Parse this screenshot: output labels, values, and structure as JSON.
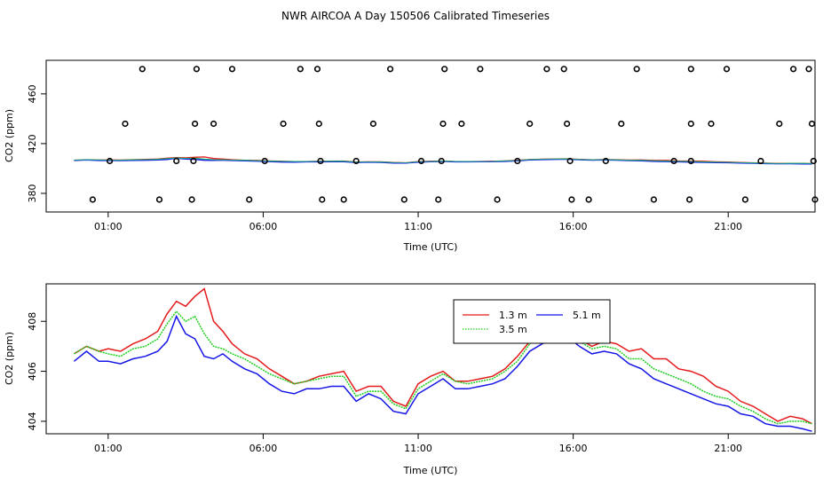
{
  "title": "NWR AIRCOA A  Day 150506  Calibrated Timeseries",
  "colors": {
    "1.3 m": "#e41a1c",
    "3.5 m": "#1fce1f",
    "5.1 m": "#1515e6",
    "teal": "#1aa0a0"
  },
  "chart_data": [
    {
      "type": "scatter",
      "panel": "top",
      "xlabel": "Time (UTC)",
      "ylabel": "CO2 (ppm)",
      "xlim": [
        -1,
        23.8
      ],
      "ylim": [
        365,
        487
      ],
      "xticks": [
        {
          "value": 1,
          "label": "01:00"
        },
        {
          "value": 6,
          "label": "06:00"
        },
        {
          "value": 11,
          "label": "11:00"
        },
        {
          "value": 16,
          "label": "16:00"
        },
        {
          "value": 21,
          "label": "21:00"
        }
      ],
      "yticks": [
        {
          "value": 380,
          "label": "380"
        },
        {
          "value": 420,
          "label": "420"
        },
        {
          "value": 460,
          "label": "460"
        }
      ],
      "outliers": [
        {
          "x": 2.1,
          "y": 480
        },
        {
          "x": 3.85,
          "y": 480
        },
        {
          "x": 5.0,
          "y": 480
        },
        {
          "x": 7.2,
          "y": 480
        },
        {
          "x": 7.75,
          "y": 480
        },
        {
          "x": 10.1,
          "y": 480
        },
        {
          "x": 11.85,
          "y": 480
        },
        {
          "x": 13.0,
          "y": 480
        },
        {
          "x": 15.15,
          "y": 480
        },
        {
          "x": 15.7,
          "y": 480
        },
        {
          "x": 18.05,
          "y": 480
        },
        {
          "x": 19.8,
          "y": 480
        },
        {
          "x": 20.95,
          "y": 480
        },
        {
          "x": 23.1,
          "y": 480
        },
        {
          "x": 23.6,
          "y": 480
        },
        {
          "x": 1.55,
          "y": 436
        },
        {
          "x": 3.8,
          "y": 436
        },
        {
          "x": 4.4,
          "y": 436
        },
        {
          "x": 6.65,
          "y": 436
        },
        {
          "x": 7.8,
          "y": 436
        },
        {
          "x": 9.55,
          "y": 436
        },
        {
          "x": 11.8,
          "y": 436
        },
        {
          "x": 12.4,
          "y": 436
        },
        {
          "x": 14.6,
          "y": 436
        },
        {
          "x": 15.8,
          "y": 436
        },
        {
          "x": 17.55,
          "y": 436
        },
        {
          "x": 19.8,
          "y": 436
        },
        {
          "x": 20.45,
          "y": 436
        },
        {
          "x": 22.65,
          "y": 436
        },
        {
          "x": 23.7,
          "y": 436
        },
        {
          "x": 1.05,
          "y": 406
        },
        {
          "x": 3.2,
          "y": 406
        },
        {
          "x": 3.75,
          "y": 406
        },
        {
          "x": 6.05,
          "y": 406
        },
        {
          "x": 7.85,
          "y": 406
        },
        {
          "x": 9.0,
          "y": 406
        },
        {
          "x": 11.1,
          "y": 406
        },
        {
          "x": 11.75,
          "y": 406
        },
        {
          "x": 14.2,
          "y": 406
        },
        {
          "x": 15.9,
          "y": 406
        },
        {
          "x": 17.05,
          "y": 406
        },
        {
          "x": 19.25,
          "y": 406
        },
        {
          "x": 19.8,
          "y": 406
        },
        {
          "x": 22.05,
          "y": 406
        },
        {
          "x": 23.75,
          "y": 406
        },
        {
          "x": 0.5,
          "y": 375
        },
        {
          "x": 2.65,
          "y": 375
        },
        {
          "x": 3.7,
          "y": 375
        },
        {
          "x": 5.55,
          "y": 375
        },
        {
          "x": 7.9,
          "y": 375
        },
        {
          "x": 8.6,
          "y": 375
        },
        {
          "x": 10.55,
          "y": 375
        },
        {
          "x": 11.65,
          "y": 375
        },
        {
          "x": 13.55,
          "y": 375
        },
        {
          "x": 15.95,
          "y": 375
        },
        {
          "x": 16.5,
          "y": 375
        },
        {
          "x": 18.6,
          "y": 375
        },
        {
          "x": 19.75,
          "y": 375
        },
        {
          "x": 21.55,
          "y": 375
        },
        {
          "x": 23.8,
          "y": 375
        }
      ]
    },
    {
      "type": "line",
      "panel": "bottom",
      "xlabel": "Time (UTC)",
      "ylabel": "CO2 (ppm)",
      "xlim": [
        -1,
        23.8
      ],
      "ylim": [
        403.5,
        409.5
      ],
      "xticks": [
        {
          "value": 1,
          "label": "01:00"
        },
        {
          "value": 6,
          "label": "06:00"
        },
        {
          "value": 11,
          "label": "11:00"
        },
        {
          "value": 16,
          "label": "16:00"
        },
        {
          "value": 21,
          "label": "21:00"
        }
      ],
      "yticks": [
        {
          "value": 404,
          "label": "404"
        },
        {
          "value": 406,
          "label": "406"
        },
        {
          "value": 408,
          "label": "408"
        }
      ],
      "legend_position": "top-center",
      "legend_entries": [
        "1.3 m",
        "5.1 m",
        "3.5 m"
      ],
      "x": [
        -0.1,
        0.3,
        0.7,
        1.0,
        1.4,
        1.8,
        2.2,
        2.6,
        2.9,
        3.2,
        3.5,
        3.8,
        4.1,
        4.4,
        4.7,
        5.0,
        5.4,
        5.8,
        6.2,
        6.6,
        7.0,
        7.4,
        7.8,
        8.2,
        8.6,
        9.0,
        9.4,
        9.8,
        10.2,
        10.6,
        11.0,
        11.4,
        11.8,
        12.2,
        12.6,
        13.0,
        13.4,
        13.8,
        14.2,
        14.6,
        15.0,
        15.4,
        15.8,
        16.2,
        16.6,
        17.0,
        17.4,
        17.8,
        18.2,
        18.6,
        19.0,
        19.4,
        19.8,
        20.2,
        20.6,
        21.0,
        21.4,
        21.8,
        22.2,
        22.6,
        23.0,
        23.4,
        23.7
      ],
      "series": [
        {
          "name": "1.3 m",
          "color": "#e41a1c",
          "values": [
            406.7,
            407.0,
            406.8,
            406.9,
            406.8,
            407.1,
            407.3,
            407.6,
            408.3,
            408.8,
            408.6,
            409.0,
            409.3,
            408.0,
            407.6,
            407.1,
            406.7,
            406.5,
            406.1,
            405.8,
            405.5,
            405.6,
            405.8,
            405.9,
            406.0,
            405.2,
            405.4,
            405.4,
            404.8,
            404.6,
            405.5,
            405.8,
            406.0,
            405.6,
            405.6,
            405.7,
            405.8,
            406.1,
            406.6,
            407.2,
            407.5,
            407.6,
            407.8,
            407.3,
            407.0,
            407.2,
            407.1,
            406.8,
            406.9,
            406.5,
            406.5,
            406.1,
            406.0,
            405.8,
            405.4,
            405.2,
            404.8,
            404.6,
            404.3,
            404.0,
            404.2,
            404.1,
            403.9
          ]
        },
        {
          "name": "3.5 m",
          "color": "#1fce1f",
          "values": [
            406.7,
            407.0,
            406.8,
            406.7,
            406.6,
            406.9,
            407.0,
            407.3,
            407.9,
            408.4,
            408.0,
            408.2,
            407.5,
            407.0,
            406.9,
            406.7,
            406.5,
            406.2,
            405.9,
            405.7,
            405.5,
            405.6,
            405.7,
            405.8,
            405.8,
            405.0,
            405.2,
            405.2,
            404.7,
            404.5,
            405.3,
            405.6,
            405.9,
            405.6,
            405.5,
            405.6,
            405.7,
            406.0,
            406.4,
            407.1,
            407.4,
            407.5,
            407.6,
            407.2,
            406.9,
            407.0,
            406.9,
            406.5,
            406.5,
            406.1,
            405.9,
            405.7,
            405.5,
            405.2,
            405.0,
            404.9,
            404.6,
            404.4,
            404.1,
            403.9,
            404.0,
            404.0,
            403.9
          ]
        },
        {
          "name": "5.1 m",
          "color": "#1515e6",
          "values": [
            406.4,
            406.8,
            406.4,
            406.4,
            406.3,
            406.5,
            406.6,
            406.8,
            407.2,
            408.2,
            407.5,
            407.3,
            406.6,
            406.5,
            406.7,
            406.4,
            406.1,
            405.9,
            405.5,
            405.2,
            405.1,
            405.3,
            405.3,
            405.4,
            405.4,
            404.8,
            405.1,
            404.9,
            404.4,
            404.3,
            405.1,
            405.4,
            405.7,
            405.3,
            405.3,
            405.4,
            405.5,
            405.7,
            406.2,
            406.8,
            407.1,
            407.3,
            407.4,
            407.0,
            406.7,
            406.8,
            406.7,
            406.3,
            406.1,
            405.7,
            405.5,
            405.3,
            405.1,
            404.9,
            404.7,
            404.6,
            404.3,
            404.2,
            403.9,
            403.8,
            403.8,
            403.7,
            403.6
          ]
        }
      ]
    }
  ]
}
